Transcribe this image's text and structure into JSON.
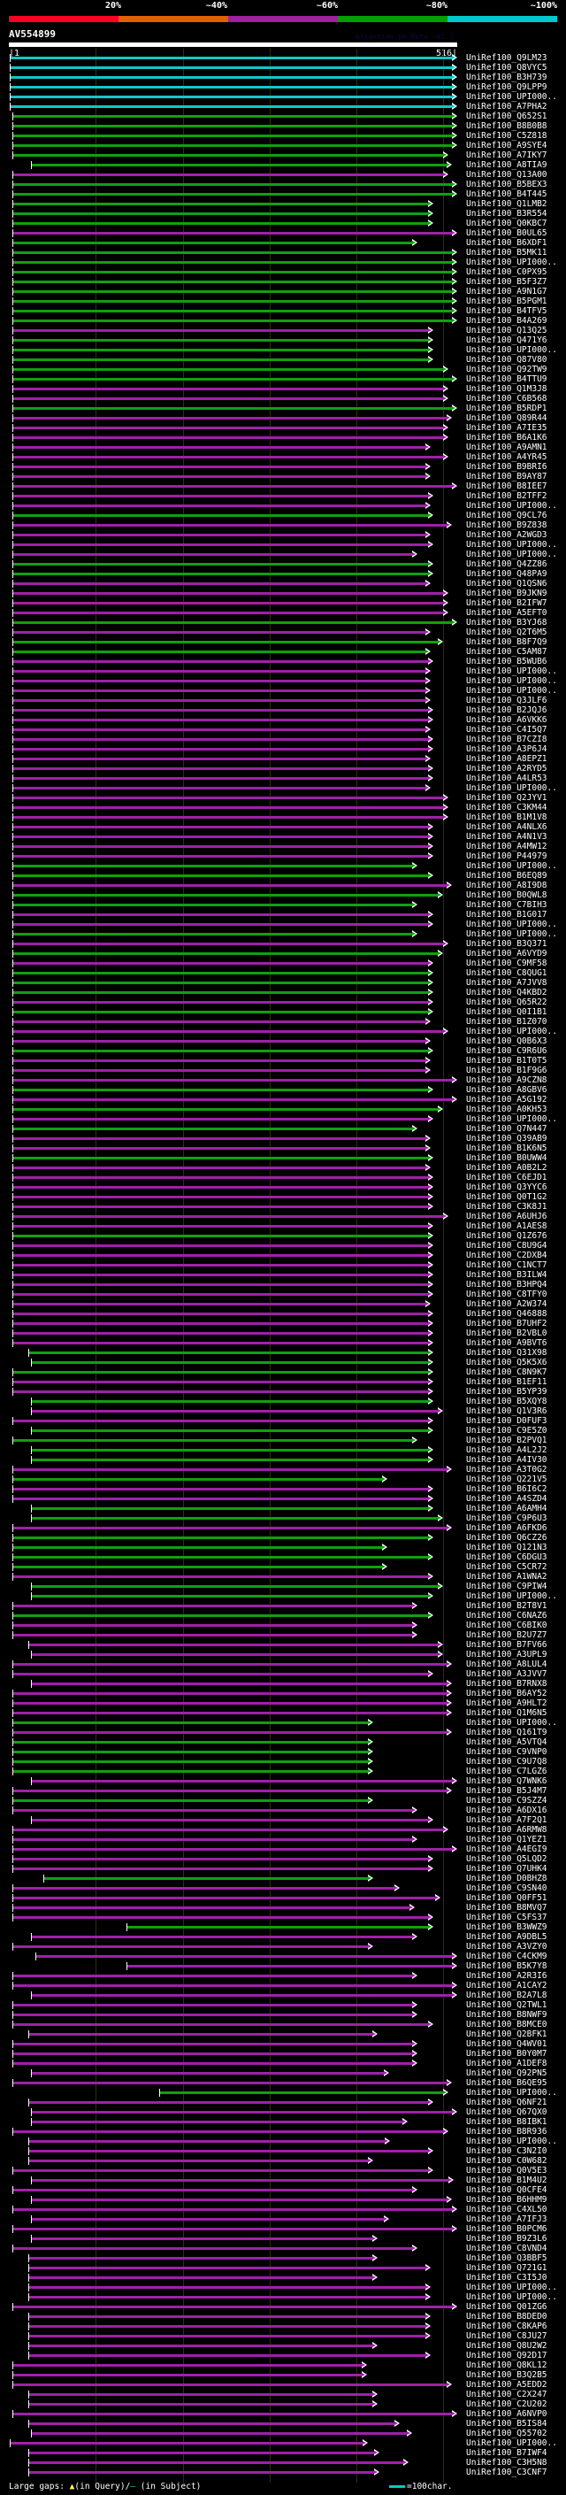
{
  "header": {
    "percent_labels": [
      "20%",
      "~40%",
      "~60%",
      "~80%",
      "~100%"
    ],
    "scale_colors": [
      "#ff0022",
      "#e06000",
      "#a020a0",
      "#00a000",
      "#00c8c8"
    ],
    "query_name": "AV554899",
    "version": "AlignView.pm Beta rel.7",
    "query_start": "|1",
    "query_end": "516|"
  },
  "query_length": 516,
  "palette": {
    "c": "#10c8c8",
    "g": "#10a010",
    "m": "#a020a8"
  },
  "rows": [
    [
      "UniRef100_Q9LM23",
      "c",
      1,
      511
    ],
    [
      "UniRef100_Q8VYC5",
      "c",
      1,
      511
    ],
    [
      "UniRef100_B3H739",
      "c",
      1,
      511
    ],
    [
      "UniRef100_Q9LPP9",
      "c",
      1,
      511
    ],
    [
      "UniRef100_UPI000..",
      "c",
      1,
      511
    ],
    [
      "UniRef100_A7PHA2",
      "c",
      1,
      511
    ],
    [
      "UniRef100_Q652S1",
      "g",
      4,
      511
    ],
    [
      "UniRef100_B8B0B8",
      "g",
      4,
      511
    ],
    [
      "UniRef100_C5Z818",
      "g",
      4,
      511
    ],
    [
      "UniRef100_A9SYE4",
      "g",
      4,
      511
    ],
    [
      "UniRef100_A7IKY7",
      "g",
      4,
      501
    ],
    [
      "UniRef100_A8TIA9",
      "g",
      25,
      505
    ],
    [
      "UniRef100_Q13A00",
      "m",
      4,
      501
    ],
    [
      "UniRef100_B5BEX3",
      "g",
      4,
      511
    ],
    [
      "UniRef100_B4T445",
      "g",
      4,
      511
    ],
    [
      "UniRef100_Q1LMB2",
      "g",
      4,
      483
    ],
    [
      "UniRef100_B3R554",
      "g",
      4,
      483
    ],
    [
      "UniRef100_Q0KBC7",
      "g",
      4,
      483
    ],
    [
      "UniRef100_B0UL65",
      "m",
      4,
      511
    ],
    [
      "UniRef100_B6XDF1",
      "g",
      4,
      465
    ],
    [
      "UniRef100_B5MK11",
      "g",
      4,
      511
    ],
    [
      "UniRef100_UPI000..",
      "g",
      4,
      511
    ],
    [
      "UniRef100_C0PX95",
      "g",
      4,
      511
    ],
    [
      "UniRef100_B5F3Z7",
      "g",
      4,
      511
    ],
    [
      "UniRef100_A9N1G7",
      "g",
      4,
      511
    ],
    [
      "UniRef100_B5PGM1",
      "g",
      4,
      511
    ],
    [
      "UniRef100_B4TFV5",
      "g",
      4,
      511
    ],
    [
      "UniRef100_B4A269",
      "g",
      4,
      511
    ],
    [
      "UniRef100_Q13Q25",
      "m",
      4,
      483
    ],
    [
      "UniRef100_Q471Y6",
      "g",
      4,
      483
    ],
    [
      "UniRef100_UPI000..",
      "g",
      4,
      483
    ],
    [
      "UniRef100_Q87V80",
      "g",
      4,
      483
    ],
    [
      "UniRef100_Q92TW9",
      "g",
      4,
      501
    ],
    [
      "UniRef100_B4TTU9",
      "g",
      4,
      511
    ],
    [
      "UniRef100_Q1M3J8",
      "m",
      4,
      501
    ],
    [
      "UniRef100_C6B568",
      "m",
      4,
      501
    ],
    [
      "UniRef100_B5RDP1",
      "g",
      4,
      511
    ],
    [
      "UniRef100_Q89R44",
      "m",
      4,
      505
    ],
    [
      "UniRef100_A7IE35",
      "m",
      4,
      501
    ],
    [
      "UniRef100_B6A1K6",
      "m",
      4,
      501
    ],
    [
      "UniRef100_A9AMN1",
      "m",
      4,
      480
    ],
    [
      "UniRef100_A4YR45",
      "m",
      4,
      501
    ],
    [
      "UniRef100_B9BRI6",
      "m",
      4,
      480
    ],
    [
      "UniRef100_B9AY87",
      "m",
      4,
      480
    ],
    [
      "UniRef100_B8IEE7",
      "m",
      4,
      511
    ],
    [
      "UniRef100_B2TFF2",
      "m",
      4,
      483
    ],
    [
      "UniRef100_UPI000..",
      "m",
      4,
      480
    ],
    [
      "UniRef100_Q9CL76",
      "g",
      4,
      483
    ],
    [
      "UniRef100_B9Z838",
      "m",
      4,
      505
    ],
    [
      "UniRef100_A2WGD3",
      "m",
      4,
      480
    ],
    [
      "UniRef100_UPI000..",
      "m",
      4,
      483
    ],
    [
      "UniRef100_UPI000..",
      "m",
      4,
      465
    ],
    [
      "UniRef100_Q4ZZ86",
      "g",
      4,
      483
    ],
    [
      "UniRef100_Q48PA9",
      "g",
      4,
      483
    ],
    [
      "UniRef100_Q1QSN6",
      "m",
      4,
      480
    ],
    [
      "UniRef100_B9JKN9",
      "m",
      4,
      501
    ],
    [
      "UniRef100_B2IFW7",
      "m",
      4,
      501
    ],
    [
      "UniRef100_A5EFT0",
      "m",
      4,
      501
    ],
    [
      "UniRef100_B3YJ68",
      "g",
      4,
      511
    ],
    [
      "UniRef100_Q2T6M5",
      "m",
      4,
      480
    ],
    [
      "UniRef100_B8F7Q9",
      "g",
      4,
      495
    ],
    [
      "UniRef100_C5AM87",
      "g",
      4,
      480
    ],
    [
      "UniRef100_B5WUB6",
      "m",
      4,
      483
    ],
    [
      "UniRef100_UPI000..",
      "m",
      4,
      480
    ],
    [
      "UniRef100_UPI000..",
      "m",
      4,
      480
    ],
    [
      "UniRef100_UPI000..",
      "m",
      4,
      480
    ],
    [
      "UniRef100_Q3JLF6",
      "m",
      4,
      480
    ],
    [
      "UniRef100_B2JQJ6",
      "m",
      4,
      483
    ],
    [
      "UniRef100_A6VKK6",
      "m",
      4,
      483
    ],
    [
      "UniRef100_C4I5Q7",
      "m",
      4,
      480
    ],
    [
      "UniRef100_B7CZI8",
      "m",
      4,
      483
    ],
    [
      "UniRef100_A3P6J4",
      "m",
      4,
      483
    ],
    [
      "UniRef100_A8EPZ1",
      "m",
      4,
      480
    ],
    [
      "UniRef100_A2RYD5",
      "m",
      4,
      483
    ],
    [
      "UniRef100_A4LR53",
      "m",
      4,
      483
    ],
    [
      "UniRef100_UPI000..",
      "m",
      4,
      480
    ],
    [
      "UniRef100_Q2JYV1",
      "m",
      4,
      501
    ],
    [
      "UniRef100_C3KM44",
      "m",
      4,
      501
    ],
    [
      "UniRef100_B1M1V8",
      "m",
      4,
      501
    ],
    [
      "UniRef100_A4NLX6",
      "m",
      4,
      483
    ],
    [
      "UniRef100_A4N1V3",
      "m",
      4,
      483
    ],
    [
      "UniRef100_A4MW12",
      "m",
      4,
      483
    ],
    [
      "UniRef100_P44979",
      "m",
      4,
      483
    ],
    [
      "UniRef100_UPI000..",
      "g",
      4,
      465
    ],
    [
      "UniRef100_B6EQ89",
      "g",
      4,
      483
    ],
    [
      "UniRef100_A8I9D8",
      "m",
      4,
      505
    ],
    [
      "UniRef100_B0QWL8",
      "g",
      4,
      495
    ],
    [
      "UniRef100_C7BIH3",
      "g",
      4,
      465
    ],
    [
      "UniRef100_B1G017",
      "m",
      4,
      483
    ],
    [
      "UniRef100_UPI000..",
      "m",
      4,
      483
    ],
    [
      "UniRef100_UPI000..",
      "g",
      4,
      465
    ],
    [
      "UniRef100_B3Q371",
      "m",
      4,
      501
    ],
    [
      "UniRef100_A6VYD9",
      "g",
      4,
      495
    ],
    [
      "UniRef100_C9MF58",
      "m",
      4,
      483
    ],
    [
      "UniRef100_C8QUG1",
      "g",
      4,
      483
    ],
    [
      "UniRef100_A7JVV8",
      "g",
      4,
      483
    ],
    [
      "UniRef100_Q4KBD2",
      "g",
      4,
      483
    ],
    [
      "UniRef100_Q65R22",
      "m",
      4,
      483
    ],
    [
      "UniRef100_Q0I1B1",
      "g",
      4,
      483
    ],
    [
      "UniRef100_B1Z070",
      "m",
      4,
      480
    ],
    [
      "UniRef100_UPI000..",
      "m",
      4,
      501
    ],
    [
      "UniRef100_Q0B6X3",
      "m",
      4,
      480
    ],
    [
      "UniRef100_C9R6U6",
      "g",
      4,
      483
    ],
    [
      "UniRef100_B1T0T5",
      "m",
      4,
      480
    ],
    [
      "UniRef100_B1F9G6",
      "m",
      4,
      480
    ],
    [
      "UniRef100_A9CZN8",
      "m",
      4,
      511
    ],
    [
      "UniRef100_A8GBV6",
      "g",
      4,
      483
    ],
    [
      "UniRef100_A5G192",
      "m",
      4,
      511
    ],
    [
      "UniRef100_A0KH53",
      "g",
      4,
      495
    ],
    [
      "UniRef100_UPI000..",
      "m",
      4,
      483
    ],
    [
      "UniRef100_Q7N447",
      "g",
      4,
      465
    ],
    [
      "UniRef100_Q39AB9",
      "m",
      4,
      480
    ],
    [
      "UniRef100_B1K6N5",
      "m",
      4,
      480
    ],
    [
      "UniRef100_B0UWW4",
      "g",
      4,
      483
    ],
    [
      "UniRef100_A0B2L2",
      "m",
      4,
      480
    ],
    [
      "UniRef100_C6EJD1",
      "m",
      4,
      483
    ],
    [
      "UniRef100_Q3YYC6",
      "m",
      4,
      483
    ],
    [
      "UniRef100_Q0T1G2",
      "m",
      4,
      483
    ],
    [
      "UniRef100_C3K8J1",
      "m",
      4,
      483
    ],
    [
      "UniRef100_A6UHJ6",
      "m",
      4,
      501
    ],
    [
      "UniRef100_A1AES8",
      "m",
      4,
      483
    ],
    [
      "UniRef100_Q1Z676",
      "g",
      4,
      483
    ],
    [
      "UniRef100_C8U9G4",
      "m",
      4,
      483
    ],
    [
      "UniRef100_C2DXB4",
      "m",
      4,
      483
    ],
    [
      "UniRef100_C1NCT7",
      "m",
      4,
      483
    ],
    [
      "UniRef100_B3ILW4",
      "m",
      4,
      483
    ],
    [
      "UniRef100_B3HPQ4",
      "m",
      4,
      483
    ],
    [
      "UniRef100_C8TFY0",
      "m",
      4,
      483
    ],
    [
      "UniRef100_A2W374",
      "m",
      4,
      480
    ],
    [
      "UniRef100_Q46888",
      "m",
      4,
      483
    ],
    [
      "UniRef100_B7UHF2",
      "m",
      4,
      483
    ],
    [
      "UniRef100_B2VBL0",
      "m",
      4,
      483
    ],
    [
      "UniRef100_A9BVT6",
      "m",
      4,
      483
    ],
    [
      "UniRef100_Q31X98",
      "g",
      22,
      483
    ],
    [
      "UniRef100_Q5K5X6",
      "g",
      25,
      483
    ],
    [
      "UniRef100_C8N9K7",
      "g",
      4,
      483
    ],
    [
      "UniRef100_B1EF11",
      "m",
      4,
      483
    ],
    [
      "UniRef100_B5YP39",
      "m",
      4,
      483
    ],
    [
      "UniRef100_B5XQY8",
      "g",
      25,
      483
    ],
    [
      "UniRef100_Q1V3R6",
      "m",
      25,
      495
    ],
    [
      "UniRef100_D0FUF3",
      "m",
      4,
      483
    ],
    [
      "UniRef100_C9E5Z0",
      "g",
      25,
      483
    ],
    [
      "UniRef100_B2PVQ1",
      "g",
      4,
      465
    ],
    [
      "UniRef100_A4L2J2",
      "g",
      25,
      483
    ],
    [
      "UniRef100_A4IV30",
      "g",
      25,
      483
    ],
    [
      "UniRef100_A3T0G2",
      "m",
      4,
      505
    ],
    [
      "UniRef100_Q221V5",
      "g",
      4,
      430
    ],
    [
      "UniRef100_B6I6C2",
      "m",
      4,
      483
    ],
    [
      "UniRef100_A4SZD4",
      "m",
      4,
      483
    ],
    [
      "UniRef100_A6AMH4",
      "g",
      25,
      483
    ],
    [
      "UniRef100_C9P6U3",
      "g",
      25,
      495
    ],
    [
      "UniRef100_A6FKD6",
      "m",
      4,
      505
    ],
    [
      "UniRef100_Q6CZ26",
      "g",
      4,
      483
    ],
    [
      "UniRef100_Q121N3",
      "g",
      4,
      430
    ],
    [
      "UniRef100_C6DGU3",
      "g",
      4,
      483
    ],
    [
      "UniRef100_C5CR72",
      "g",
      4,
      430
    ],
    [
      "UniRef100_A1WNA2",
      "m",
      4,
      483
    ],
    [
      "UniRef100_C9PIW4",
      "g",
      25,
      495
    ],
    [
      "UniRef100_UPI000..",
      "g",
      25,
      483
    ],
    [
      "UniRef100_B2T8V1",
      "m",
      4,
      465
    ],
    [
      "UniRef100_C6NAZ6",
      "g",
      4,
      483
    ],
    [
      "UniRef100_C6BIK0",
      "m",
      4,
      465
    ],
    [
      "UniRef100_B2U7Z7",
      "m",
      4,
      465
    ],
    [
      "UniRef100_B7FV66",
      "m",
      22,
      495
    ],
    [
      "UniRef100_A3UPL9",
      "m",
      25,
      495
    ],
    [
      "UniRef100_A8LUL4",
      "m",
      4,
      505
    ],
    [
      "UniRef100_A3JVV7",
      "m",
      4,
      483
    ],
    [
      "UniRef100_B7RNX8",
      "m",
      25,
      505
    ],
    [
      "UniRef100_B6AY52",
      "m",
      4,
      505
    ],
    [
      "UniRef100_A9HLT2",
      "m",
      4,
      505
    ],
    [
      "UniRef100_Q1M6N5",
      "m",
      4,
      505
    ],
    [
      "UniRef100_UPI000..",
      "g",
      4,
      414
    ],
    [
      "UniRef100_Q161T9",
      "m",
      4,
      505
    ],
    [
      "UniRef100_A5VTQ4",
      "g",
      4,
      414
    ],
    [
      "UniRef100_C9VNP0",
      "g",
      4,
      414
    ],
    [
      "UniRef100_C9U7Q8",
      "g",
      4,
      414
    ],
    [
      "UniRef100_C7LGZ6",
      "g",
      4,
      414
    ],
    [
      "UniRef100_Q7WNK6",
      "m",
      25,
      511
    ],
    [
      "UniRef100_B5J4M7",
      "m",
      4,
      505
    ],
    [
      "UniRef100_C9SZZ4",
      "g",
      4,
      414
    ],
    [
      "UniRef100_A6DX16",
      "m",
      4,
      465
    ],
    [
      "UniRef100_A7F2Q1",
      "m",
      25,
      483
    ],
    [
      "UniRef100_A6RMW8",
      "m",
      4,
      501
    ],
    [
      "UniRef100_Q1YEZ1",
      "m",
      4,
      465
    ],
    [
      "UniRef100_A4EGI9",
      "m",
      4,
      511
    ],
    [
      "UniRef100_Q5LQD2",
      "m",
      4,
      483
    ],
    [
      "UniRef100_Q7UHK4",
      "m",
      4,
      483
    ],
    [
      "UniRef100_D0BHZ8",
      "g",
      40,
      414
    ],
    [
      "UniRef100_C9SN40",
      "m",
      4,
      445
    ],
    [
      "UniRef100_Q0FF51",
      "m",
      4,
      492
    ],
    [
      "UniRef100_B8MVQ7",
      "m",
      4,
      462
    ],
    [
      "UniRef100_C5FS37",
      "m",
      4,
      483
    ],
    [
      "UniRef100_B3WWZ9",
      "g",
      135,
      483
    ],
    [
      "UniRef100_A9DBL5",
      "m",
      25,
      465
    ],
    [
      "UniRef100_A3VZY0",
      "m",
      4,
      414
    ],
    [
      "UniRef100_C4CKM9",
      "m",
      31,
      511
    ],
    [
      "UniRef100_B5K7Y8",
      "m",
      135,
      511
    ],
    [
      "UniRef100_A2R3I6",
      "m",
      4,
      465
    ],
    [
      "UniRef100_A1CAY2",
      "m",
      4,
      511
    ],
    [
      "UniRef100_B2A7L8",
      "m",
      25,
      511
    ],
    [
      "UniRef100_Q2TWL1",
      "m",
      4,
      465
    ],
    [
      "UniRef100_B8NWF9",
      "m",
      4,
      465
    ],
    [
      "UniRef100_B8MCE0",
      "m",
      4,
      483
    ],
    [
      "UniRef100_Q2BFK1",
      "m",
      22,
      419
    ],
    [
      "UniRef100_Q4WV01",
      "m",
      4,
      465
    ],
    [
      "UniRef100_B0Y0M7",
      "m",
      4,
      465
    ],
    [
      "UniRef100_A1DEF8",
      "m",
      4,
      465
    ],
    [
      "UniRef100_Q92PN5",
      "m",
      25,
      433
    ],
    [
      "UniRef100_B6QE95",
      "m",
      4,
      505
    ],
    [
      "UniRef100_UPI000..",
      "g",
      173,
      501
    ],
    [
      "UniRef100_Q6NF21",
      "m",
      22,
      483
    ],
    [
      "UniRef100_Q67QX0",
      "m",
      25,
      511
    ],
    [
      "UniRef100_B8IBK1",
      "m",
      25,
      454
    ],
    [
      "UniRef100_B8R936",
      "m",
      4,
      501
    ],
    [
      "UniRef100_UPI000..",
      "m",
      22,
      434
    ],
    [
      "UniRef100_C3N2I0",
      "m",
      22,
      483
    ],
    [
      "UniRef100_C0W682",
      "m",
      22,
      414
    ],
    [
      "UniRef100_Q0V5E3",
      "m",
      4,
      483
    ],
    [
      "UniRef100_B1M4U2",
      "m",
      25,
      507
    ],
    [
      "UniRef100_Q0CFE4",
      "m",
      4,
      465
    ],
    [
      "UniRef100_B6HHM9",
      "m",
      25,
      505
    ],
    [
      "UniRef100_C4XL50",
      "m",
      4,
      511
    ],
    [
      "UniRef100_A7IFJ3",
      "m",
      25,
      433
    ],
    [
      "UniRef100_B0PCM6",
      "m",
      4,
      511
    ],
    [
      "UniRef100_B9Z3L6",
      "m",
      25,
      419
    ],
    [
      "UniRef100_C8VND4",
      "m",
      4,
      465
    ],
    [
      "UniRef100_Q3BBF5",
      "m",
      22,
      419
    ],
    [
      "UniRef100_Q721G1",
      "m",
      22,
      480
    ],
    [
      "UniRef100_C3I5J0",
      "m",
      22,
      419
    ],
    [
      "UniRef100_UPI000..",
      "m",
      22,
      480
    ],
    [
      "UniRef100_UPI000..",
      "m",
      22,
      480
    ],
    [
      "UniRef100_Q01ZG6",
      "m",
      4,
      511
    ],
    [
      "UniRef100_B8DED0",
      "m",
      22,
      480
    ],
    [
      "UniRef100_C8KAP6",
      "m",
      22,
      480
    ],
    [
      "UniRef100_C8JU27",
      "m",
      22,
      480
    ],
    [
      "UniRef100_Q8U2W2",
      "m",
      22,
      419
    ],
    [
      "UniRef100_Q92D17",
      "m",
      22,
      480
    ],
    [
      "UniRef100_Q8KL12",
      "m",
      4,
      407
    ],
    [
      "UniRef100_B3Q2B5",
      "m",
      4,
      407
    ],
    [
      "UniRef100_A5EDD2",
      "m",
      4,
      505
    ],
    [
      "UniRef100_C2X247",
      "m",
      22,
      419
    ],
    [
      "UniRef100_C2U202",
      "m",
      22,
      419
    ],
    [
      "UniRef100_A6NVP0",
      "m",
      4,
      511
    ],
    [
      "UniRef100_B5IS84",
      "m",
      22,
      445
    ],
    [
      "UniRef100_Q55702",
      "m",
      25,
      459
    ],
    [
      "UniRef100_UPI000..",
      "m",
      1,
      408
    ],
    [
      "UniRef100_B7IWF4",
      "m",
      22,
      421
    ],
    [
      "UniRef100_C3H5N8",
      "m",
      22,
      455
    ],
    [
      "UniRef100_C3CNF7",
      "m",
      22,
      421
    ]
  ],
  "footer": {
    "gaps_label": "Large gaps:",
    "gap_query_icon": "▲",
    "gap_query_text": "(in Query)/",
    "gap_subject_icon": "–",
    "gap_subject_text": " (in Subject)",
    "scale_legend": "=100char."
  }
}
